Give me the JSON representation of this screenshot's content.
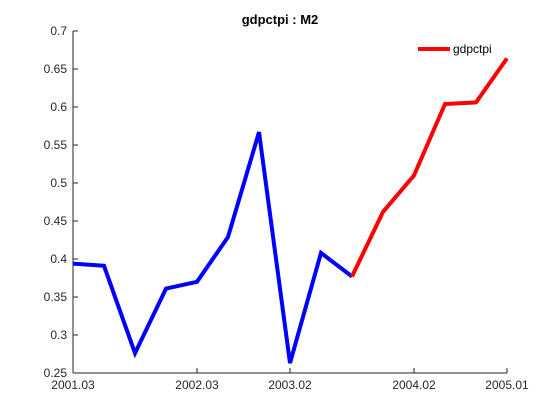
{
  "chart_data": {
    "type": "line",
    "title": "gdpctpi : M2",
    "xlabel": "",
    "ylabel": "",
    "x_tick_labels": [
      "2001.03",
      "2002.03",
      "2003.02",
      "2004.02",
      "2005.01"
    ],
    "x_tick_index": [
      0,
      4,
      7,
      11,
      14
    ],
    "ylim": [
      0.25,
      0.7
    ],
    "y_ticks": [
      0.25,
      0.3,
      0.35,
      0.4,
      0.45,
      0.5,
      0.55,
      0.6,
      0.65,
      0.7
    ],
    "grid": false,
    "legend_position": "top-right",
    "series": [
      {
        "name": "",
        "color": "#0000ff",
        "x_index": [
          0,
          1,
          2,
          3,
          4,
          5,
          6,
          7,
          8,
          9
        ],
        "values": [
          0.394,
          0.391,
          0.276,
          0.361,
          0.37,
          0.429,
          0.567,
          0.263,
          0.408,
          0.377
        ]
      },
      {
        "name": "gdpctpi",
        "color": "#ff0000",
        "x_index": [
          9,
          10,
          11,
          12,
          13,
          14
        ],
        "values": [
          0.377,
          0.462,
          0.51,
          0.604,
          0.606,
          0.664
        ]
      }
    ]
  }
}
